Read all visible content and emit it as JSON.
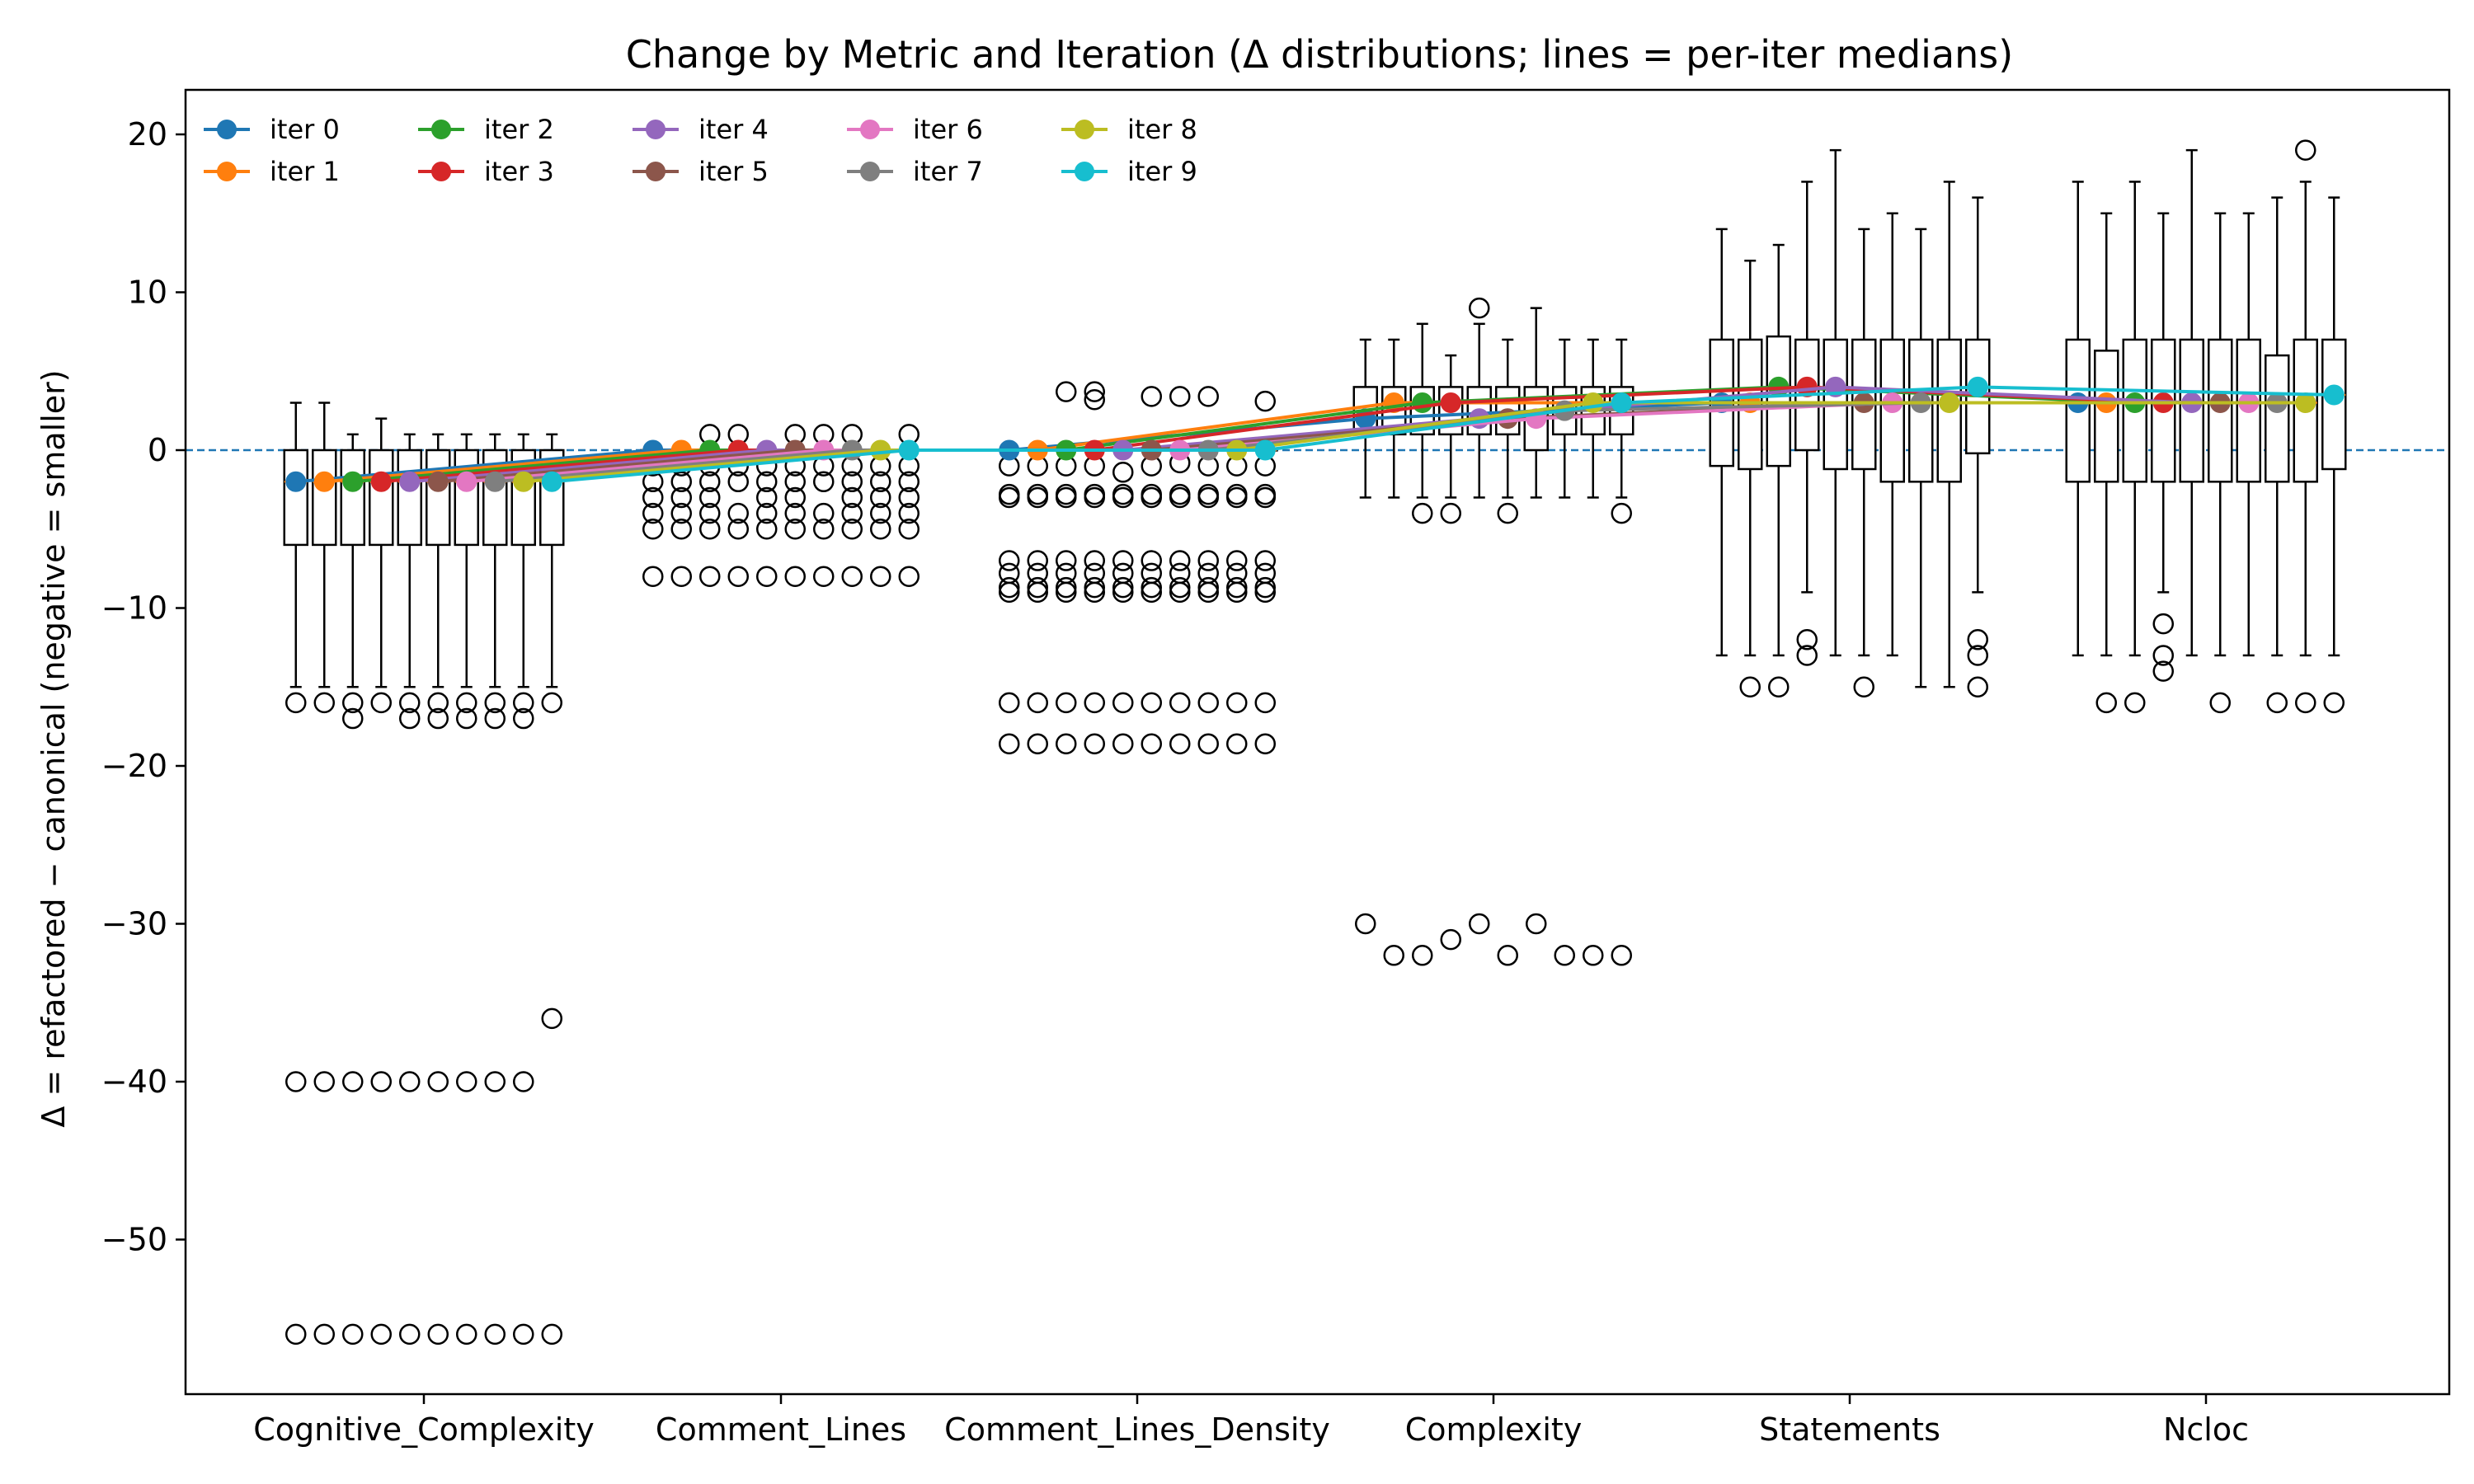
{
  "chart_data": {
    "type": "box",
    "title": "Change by Metric and Iteration (Δ distributions; lines = per-iter medians)",
    "xlabel": "",
    "ylabel": "Δ = refactored − canonical (negative = smaller)",
    "ylim": [
      -59.8,
      22.4
    ],
    "yticks": [
      20,
      10,
      0,
      -10,
      -20,
      -30,
      -40,
      -50
    ],
    "ytick_labels": [
      "20",
      "10",
      "0",
      "−10",
      "−20",
      "−30",
      "−40",
      "−50"
    ],
    "reference_line": 0,
    "categories": [
      "Cognitive_Complexity",
      "Comment_Lines",
      "Comment_Lines_Density",
      "Complexity",
      "Statements",
      "Ncloc"
    ],
    "series": [
      {
        "name": "iter 0",
        "color": "#1f77b4"
      },
      {
        "name": "iter 1",
        "color": "#ff7f0e"
      },
      {
        "name": "iter 2",
        "color": "#2ca02c"
      },
      {
        "name": "iter 3",
        "color": "#d62728"
      },
      {
        "name": "iter 4",
        "color": "#9467bd"
      },
      {
        "name": "iter 5",
        "color": "#8c564b"
      },
      {
        "name": "iter 6",
        "color": "#e377c2"
      },
      {
        "name": "iter 7",
        "color": "#7f7f7f"
      },
      {
        "name": "iter 8",
        "color": "#bcbd22"
      },
      {
        "name": "iter 9",
        "color": "#17becf"
      }
    ],
    "boxes": [
      [
        {
          "q1": -6,
          "med": -2,
          "q3": 0,
          "wl": -15,
          "wh": 3,
          "out": [
            -16,
            -40,
            -56
          ]
        },
        {
          "q1": -6,
          "med": -2,
          "q3": 0,
          "wl": -15,
          "wh": 3,
          "out": [
            -16,
            -40,
            -56
          ]
        },
        {
          "q1": -6,
          "med": -2,
          "q3": 0,
          "wl": -15,
          "wh": 1,
          "out": [
            -16,
            -17,
            -40,
            -56
          ]
        },
        {
          "q1": -6,
          "med": -2,
          "q3": 0,
          "wl": -15,
          "wh": 2,
          "out": [
            -16,
            -40,
            -56
          ]
        },
        {
          "q1": -6,
          "med": -2,
          "q3": 0,
          "wl": -15,
          "wh": 1,
          "out": [
            -16,
            -17,
            -40,
            -56
          ]
        },
        {
          "q1": -6,
          "med": -2,
          "q3": 0,
          "wl": -15,
          "wh": 1,
          "out": [
            -16,
            -17,
            -40,
            -56
          ]
        },
        {
          "q1": -6,
          "med": -2,
          "q3": 0,
          "wl": -15,
          "wh": 1,
          "out": [
            -16,
            -17,
            -40,
            -56
          ]
        },
        {
          "q1": -6,
          "med": -2,
          "q3": 0,
          "wl": -15,
          "wh": 1,
          "out": [
            -16,
            -17,
            -40,
            -56
          ]
        },
        {
          "q1": -6,
          "med": -2,
          "q3": 0,
          "wl": -15,
          "wh": 1,
          "out": [
            -16,
            -17,
            -40,
            -56
          ]
        },
        {
          "q1": -6,
          "med": -2,
          "q3": 0,
          "wl": -15,
          "wh": 1,
          "out": [
            -16,
            -36,
            -56
          ]
        }
      ],
      [
        {
          "q1": 0,
          "med": 0,
          "q3": 0,
          "wl": 0,
          "wh": 0,
          "out": [
            -1,
            -2,
            -3,
            -4,
            -5,
            -8
          ]
        },
        {
          "q1": 0,
          "med": 0,
          "q3": 0,
          "wl": 0,
          "wh": 0,
          "out": [
            -1,
            -2,
            -3,
            -4,
            -5,
            -8
          ]
        },
        {
          "q1": 0,
          "med": 0,
          "q3": 0,
          "wl": 0,
          "wh": 0,
          "out": [
            1,
            -1,
            -2,
            -3,
            -4,
            -5,
            -8
          ]
        },
        {
          "q1": 0,
          "med": 0,
          "q3": 0,
          "wl": 0,
          "wh": 0,
          "out": [
            1,
            -1,
            -2,
            -4,
            -5,
            -8
          ]
        },
        {
          "q1": 0,
          "med": 0,
          "q3": 0,
          "wl": 0,
          "wh": 0,
          "out": [
            -1,
            -2,
            -3,
            -4,
            -5,
            -8
          ]
        },
        {
          "q1": 0,
          "med": 0,
          "q3": 0,
          "wl": 0,
          "wh": 0,
          "out": [
            1,
            -1,
            -2,
            -3,
            -4,
            -5,
            -8
          ]
        },
        {
          "q1": 0,
          "med": 0,
          "q3": 0,
          "wl": 0,
          "wh": 0,
          "out": [
            1,
            -1,
            -2,
            -4,
            -5,
            -8
          ]
        },
        {
          "q1": 0,
          "med": 0,
          "q3": 0,
          "wl": 0,
          "wh": 0,
          "out": [
            1,
            -1,
            -2,
            -3,
            -4,
            -5,
            -8
          ]
        },
        {
          "q1": 0,
          "med": 0,
          "q3": 0,
          "wl": 0,
          "wh": 0,
          "out": [
            -1,
            -2,
            -3,
            -4,
            -5,
            -8
          ]
        },
        {
          "q1": 0,
          "med": 0,
          "q3": 0,
          "wl": 0,
          "wh": 0,
          "out": [
            1,
            -1,
            -2,
            -3,
            -4,
            -5,
            -8
          ]
        }
      ],
      [
        {
          "q1": 0,
          "med": 0,
          "q3": 0,
          "wl": 0,
          "wh": 0,
          "out": [
            -1,
            -2.8,
            -3,
            -7,
            -7.8,
            -8.7,
            -9,
            -16,
            -18.6
          ]
        },
        {
          "q1": 0,
          "med": 0,
          "q3": 0,
          "wl": 0,
          "wh": 0,
          "out": [
            -1,
            -2.8,
            -3,
            -7,
            -7.8,
            -8.7,
            -9,
            -16,
            -18.6
          ]
        },
        {
          "q1": 0,
          "med": 0,
          "q3": 0,
          "wl": 0,
          "wh": 0,
          "out": [
            3.7,
            -1,
            -2.8,
            -3,
            -7,
            -7.8,
            -8.7,
            -9,
            -16,
            -18.6
          ]
        },
        {
          "q1": 0,
          "med": 0,
          "q3": 0,
          "wl": 0,
          "wh": 0,
          "out": [
            3.7,
            3.2,
            -1,
            -2.8,
            -3,
            -7,
            -7.8,
            -8.7,
            -9,
            -16,
            -18.6
          ]
        },
        {
          "q1": 0,
          "med": 0,
          "q3": 0,
          "wl": 0,
          "wh": 0,
          "out": [
            -1.4,
            -2.8,
            -3,
            -7,
            -7.8,
            -8.7,
            -9,
            -16,
            -18.6
          ]
        },
        {
          "q1": 0,
          "med": 0,
          "q3": 0,
          "wl": 0,
          "wh": 0,
          "out": [
            3.4,
            -1,
            -2.8,
            -3,
            -7,
            -7.8,
            -8.7,
            -9,
            -16,
            -18.6
          ]
        },
        {
          "q1": 0,
          "med": 0,
          "q3": 0,
          "wl": 0,
          "wh": 0,
          "out": [
            3.4,
            -0.8,
            -2.8,
            -3,
            -7,
            -7.8,
            -8.7,
            -9,
            -16,
            -18.6
          ]
        },
        {
          "q1": 0,
          "med": 0,
          "q3": 0,
          "wl": 0,
          "wh": 0,
          "out": [
            3.4,
            -1,
            -2.8,
            -3,
            -7,
            -7.8,
            -8.7,
            -9,
            -16,
            -18.6
          ]
        },
        {
          "q1": 0,
          "med": 0,
          "q3": 0,
          "wl": 0,
          "wh": 0,
          "out": [
            -1,
            -2.8,
            -3,
            -7,
            -7.8,
            -8.7,
            -9,
            -16,
            -18.6
          ]
        },
        {
          "q1": 0,
          "med": 0,
          "q3": 0,
          "wl": 0,
          "wh": 0,
          "out": [
            3.1,
            -1,
            -2.8,
            -3,
            -7,
            -7.8,
            -8.7,
            -9,
            -16,
            -18.6
          ]
        }
      ],
      [
        {
          "q1": 1,
          "med": 2,
          "q3": 4,
          "wl": -3,
          "wh": 7,
          "out": [
            -30
          ]
        },
        {
          "q1": 1,
          "med": 3,
          "q3": 4,
          "wl": -3,
          "wh": 7,
          "out": [
            -32
          ]
        },
        {
          "q1": 1,
          "med": 3,
          "q3": 4,
          "wl": -3,
          "wh": 8,
          "out": [
            -4,
            -32
          ]
        },
        {
          "q1": 1,
          "med": 3,
          "q3": 4,
          "wl": -3,
          "wh": 6,
          "out": [
            -4,
            -31
          ]
        },
        {
          "q1": 1,
          "med": 2,
          "q3": 4,
          "wl": -3,
          "wh": 8,
          "out": [
            9,
            -30
          ]
        },
        {
          "q1": 1,
          "med": 2,
          "q3": 4,
          "wl": -3,
          "wh": 7,
          "out": [
            -4,
            -32
          ]
        },
        {
          "q1": 0,
          "med": 2,
          "q3": 4,
          "wl": -3,
          "wh": 9,
          "out": [
            -30
          ]
        },
        {
          "q1": 1,
          "med": 2.5,
          "q3": 4,
          "wl": -3,
          "wh": 7,
          "out": [
            -32
          ]
        },
        {
          "q1": 1,
          "med": 3,
          "q3": 4,
          "wl": -3,
          "wh": 7,
          "out": [
            -32
          ]
        },
        {
          "q1": 1,
          "med": 3,
          "q3": 4,
          "wl": -3,
          "wh": 7,
          "out": [
            -4,
            -32
          ]
        }
      ],
      [
        {
          "q1": -1,
          "med": 3,
          "q3": 7,
          "wl": -13,
          "wh": 14,
          "out": []
        },
        {
          "q1": -1.2,
          "med": 3,
          "q3": 7,
          "wl": -13,
          "wh": 12,
          "out": [
            -15
          ]
        },
        {
          "q1": -1,
          "med": 4,
          "q3": 7.2,
          "wl": -13,
          "wh": 13,
          "out": [
            -15
          ]
        },
        {
          "q1": 0,
          "med": 4,
          "q3": 7,
          "wl": -9,
          "wh": 17,
          "out": [
            -12,
            -13
          ]
        },
        {
          "q1": -1.2,
          "med": 4,
          "q3": 7,
          "wl": -13,
          "wh": 19,
          "out": []
        },
        {
          "q1": -1.2,
          "med": 3,
          "q3": 7,
          "wl": -13,
          "wh": 14,
          "out": [
            -15
          ]
        },
        {
          "q1": -2,
          "med": 3,
          "q3": 7,
          "wl": -13,
          "wh": 15,
          "out": []
        },
        {
          "q1": -2,
          "med": 3,
          "q3": 7,
          "wl": -15,
          "wh": 14,
          "out": []
        },
        {
          "q1": -2,
          "med": 3,
          "q3": 7,
          "wl": -15,
          "wh": 17,
          "out": []
        },
        {
          "q1": -0.2,
          "med": 4,
          "q3": 7,
          "wl": -9,
          "wh": 16,
          "out": [
            -12,
            -13,
            -15
          ]
        }
      ],
      [
        {
          "q1": -2,
          "med": 3,
          "q3": 7,
          "wl": -13,
          "wh": 17,
          "out": []
        },
        {
          "q1": -2,
          "med": 3,
          "q3": 6.3,
          "wl": -13,
          "wh": 15,
          "out": [
            -16
          ]
        },
        {
          "q1": -2,
          "med": 3,
          "q3": 7,
          "wl": -13,
          "wh": 17,
          "out": [
            -16
          ]
        },
        {
          "q1": -2,
          "med": 3,
          "q3": 7,
          "wl": -9,
          "wh": 15,
          "out": [
            -11,
            -13,
            -14
          ]
        },
        {
          "q1": -2,
          "med": 3,
          "q3": 7,
          "wl": -13,
          "wh": 19,
          "out": []
        },
        {
          "q1": -2,
          "med": 3,
          "q3": 7,
          "wl": -13,
          "wh": 15,
          "out": [
            -16
          ]
        },
        {
          "q1": -2,
          "med": 3,
          "q3": 7,
          "wl": -13,
          "wh": 15,
          "out": []
        },
        {
          "q1": -2,
          "med": 3,
          "q3": 6,
          "wl": -13,
          "wh": 16,
          "out": [
            -16
          ]
        },
        {
          "q1": -2,
          "med": 3,
          "q3": 7,
          "wl": -13,
          "wh": 17,
          "out": [
            19,
            -16
          ]
        },
        {
          "q1": -1.2,
          "med": 3.5,
          "q3": 7,
          "wl": -13,
          "wh": 16,
          "out": [
            -16
          ]
        }
      ]
    ],
    "medians": [
      [
        -2,
        0,
        0,
        2,
        3,
        3
      ],
      [
        -2,
        0,
        0,
        3,
        3,
        3
      ],
      [
        -2,
        0,
        0,
        3,
        4,
        3
      ],
      [
        -2,
        0,
        0,
        3,
        4,
        3
      ],
      [
        -2,
        0,
        0,
        2,
        4,
        3
      ],
      [
        -2,
        0,
        0,
        2,
        3,
        3
      ],
      [
        -2,
        0,
        0,
        2,
        3,
        3
      ],
      [
        -2,
        0,
        0,
        2.5,
        3,
        3
      ],
      [
        -2,
        0,
        0,
        3,
        3,
        3
      ],
      [
        -2,
        0,
        0,
        3,
        4,
        3.5
      ]
    ]
  }
}
